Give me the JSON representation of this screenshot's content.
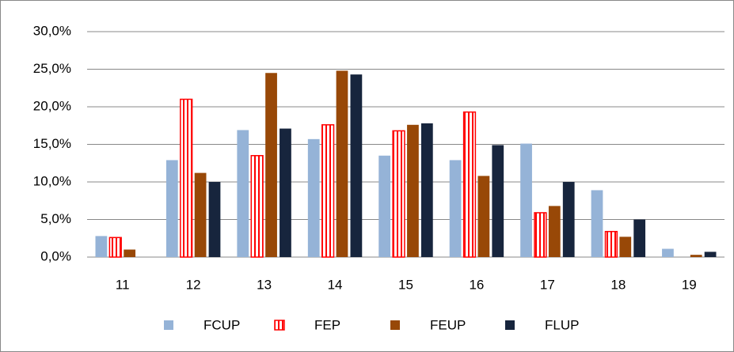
{
  "chart_data": {
    "type": "bar",
    "categories": [
      "11",
      "12",
      "13",
      "14",
      "15",
      "16",
      "17",
      "18",
      "19"
    ],
    "series": [
      {
        "name": "FCUP",
        "color": "#95b3d7",
        "values": [
          2.8,
          12.9,
          16.9,
          15.7,
          13.5,
          12.9,
          15.1,
          8.9,
          1.1
        ]
      },
      {
        "name": "FEP",
        "color": "#ff0000",
        "pattern": "vertical-stripes",
        "values": [
          2.6,
          21.0,
          13.5,
          17.6,
          16.8,
          19.3,
          5.9,
          3.4,
          0
        ]
      },
      {
        "name": "FEUP",
        "color": "#984807",
        "values": [
          1.0,
          11.2,
          24.5,
          24.8,
          17.6,
          10.8,
          6.8,
          2.7,
          0.3
        ]
      },
      {
        "name": "FLUP",
        "color": "#17253d",
        "values": [
          0,
          10.0,
          17.1,
          24.3,
          17.8,
          14.9,
          10.0,
          5.0,
          0.7
        ]
      }
    ],
    "ylim": [
      0,
      30
    ],
    "yticks": [
      {
        "value": 0,
        "label": "0,0%"
      },
      {
        "value": 5,
        "label": "5,0%"
      },
      {
        "value": 10,
        "label": "10,0%"
      },
      {
        "value": 15,
        "label": "15,0%"
      },
      {
        "value": 20,
        "label": "20,0%"
      },
      {
        "value": 25,
        "label": "25,0%"
      },
      {
        "value": 30,
        "label": "30,0%"
      }
    ],
    "grid": true,
    "legend": "bottom"
  }
}
